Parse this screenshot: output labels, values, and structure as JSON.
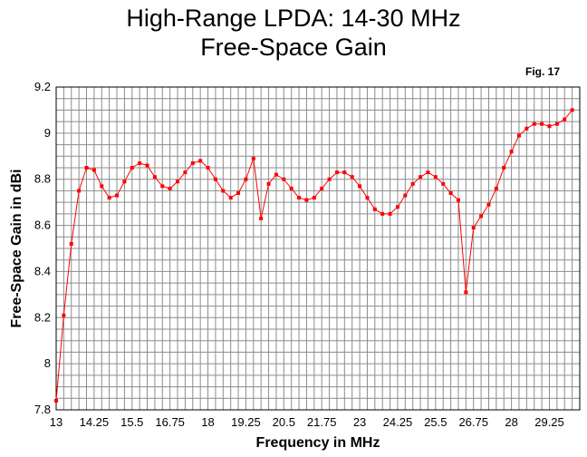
{
  "title_line1": "High-Range LPDA:  14-30 MHz",
  "title_line2": "Free-Space Gain",
  "fig_label": "Fig. 17",
  "chart_data": {
    "type": "line",
    "xlabel": "Frequency in MHz",
    "ylabel": "Free-Space Gain in dBi",
    "xlim": [
      13,
      30.25
    ],
    "ylim": [
      7.8,
      9.2
    ],
    "x_ticks": [
      "13",
      "14.25",
      "15.5",
      "16.75",
      "18",
      "19.25",
      "20.5",
      "21.75",
      "23",
      "24.25",
      "25.5",
      "26.75",
      "28",
      "29.25"
    ],
    "y_ticks": [
      "7.8",
      "8",
      "8.2",
      "8.4",
      "8.6",
      "8.8",
      "9",
      "9.2"
    ],
    "grid": true,
    "line_color": "#ff0000",
    "marker_color": "#ff0000",
    "x": [
      13,
      13.25,
      13.5,
      13.75,
      14,
      14.25,
      14.5,
      14.75,
      15,
      15.25,
      15.5,
      15.75,
      16,
      16.25,
      16.5,
      16.75,
      17,
      17.25,
      17.5,
      17.75,
      18,
      18.25,
      18.5,
      18.75,
      19,
      19.25,
      19.5,
      19.75,
      20,
      20.25,
      20.5,
      20.75,
      21,
      21.25,
      21.5,
      21.75,
      22,
      22.25,
      22.5,
      22.75,
      23,
      23.25,
      23.5,
      23.75,
      24,
      24.25,
      24.5,
      24.75,
      25,
      25.25,
      25.5,
      25.75,
      26,
      26.25,
      26.5,
      26.75,
      27,
      27.25,
      27.5,
      27.75,
      28,
      28.25,
      28.5,
      28.75,
      29,
      29.25,
      29.5,
      29.75,
      30
    ],
    "y": [
      7.84,
      8.21,
      8.52,
      8.75,
      8.85,
      8.84,
      8.77,
      8.72,
      8.73,
      8.79,
      8.85,
      8.87,
      8.86,
      8.81,
      8.77,
      8.76,
      8.79,
      8.83,
      8.87,
      8.88,
      8.85,
      8.8,
      8.75,
      8.72,
      8.74,
      8.8,
      8.89,
      8.63,
      8.78,
      8.82,
      8.8,
      8.76,
      8.72,
      8.71,
      8.72,
      8.76,
      8.8,
      8.83,
      8.83,
      8.81,
      8.77,
      8.72,
      8.67,
      8.65,
      8.65,
      8.68,
      8.73,
      8.78,
      8.81,
      8.83,
      8.81,
      8.78,
      8.74,
      8.71,
      8.31,
      8.59,
      8.64,
      8.69,
      8.76,
      8.85,
      8.92,
      8.99,
      9.02,
      9.04,
      9.04,
      9.03,
      9.04,
      9.06,
      9.1
    ]
  }
}
